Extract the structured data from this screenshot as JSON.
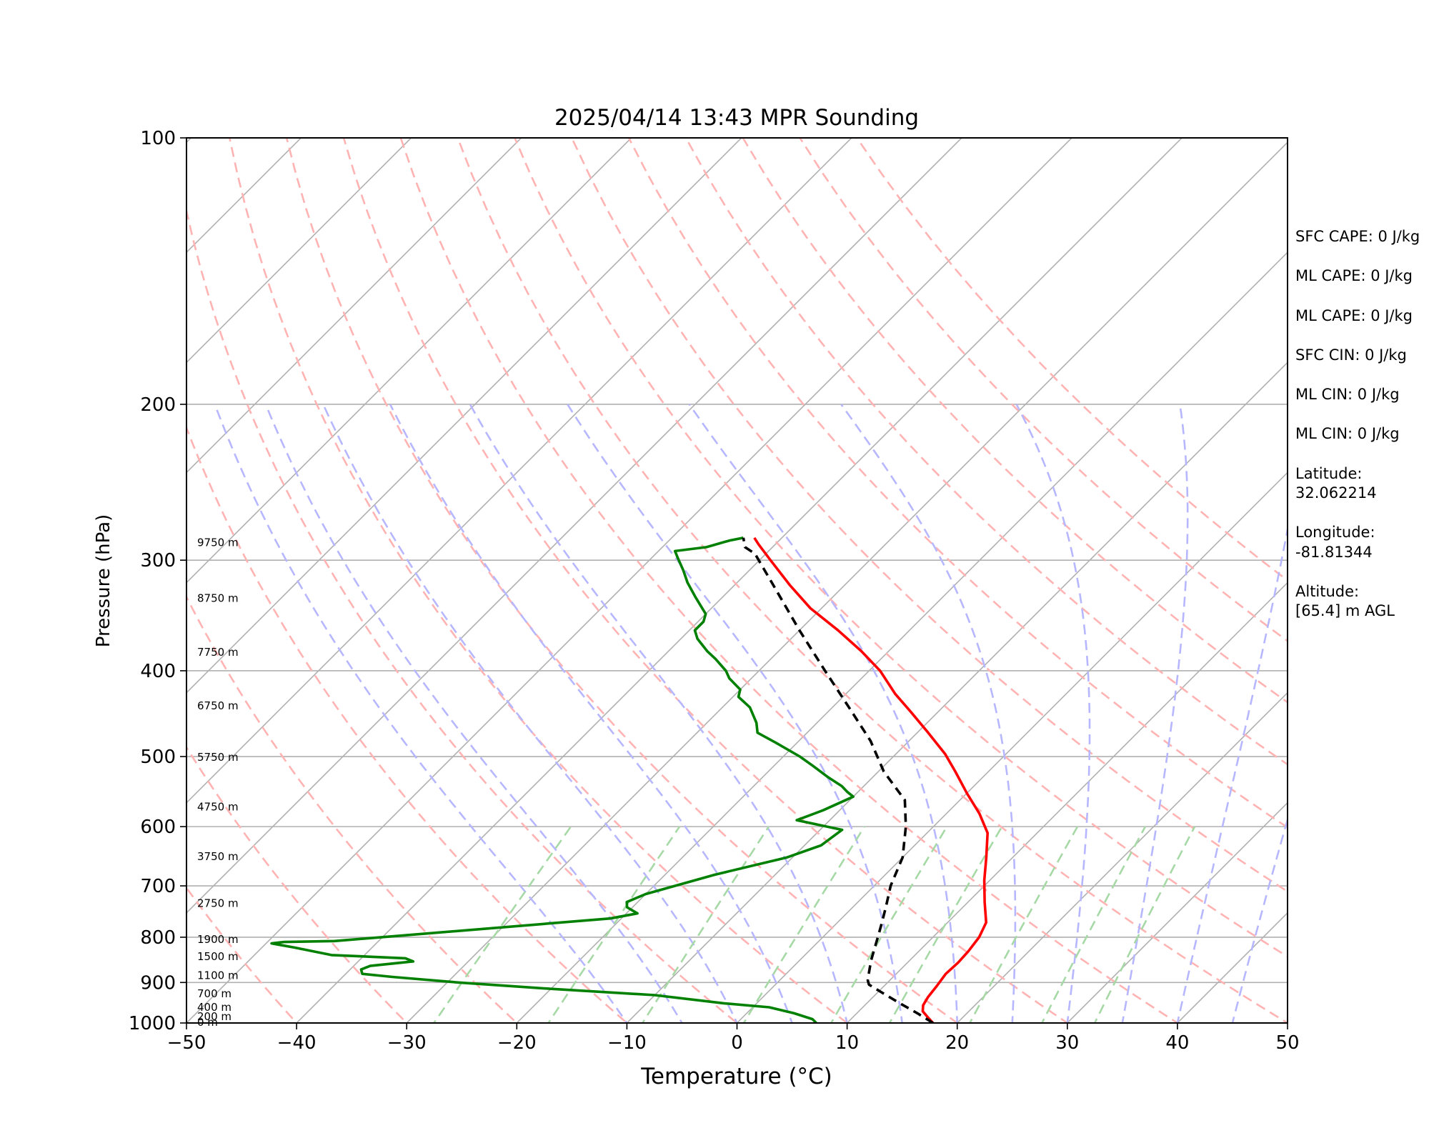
{
  "chart_data": {
    "type": "skew-t",
    "title": "2025/04/14 13:43 MPR Sounding",
    "xlabel": "Temperature (°C)",
    "ylabel": "Pressure (hPa)",
    "xlim": [
      -50,
      50
    ],
    "ylim": [
      1000,
      100
    ],
    "y_scale": "log",
    "x_ticks": [
      "−50",
      "−40",
      "−30",
      "−20",
      "−10",
      "0",
      "10",
      "20",
      "30",
      "40",
      "50"
    ],
    "y_ticks": [
      "100",
      "200",
      "300",
      "400",
      "500",
      "600",
      "700",
      "800",
      "900",
      "1000"
    ],
    "height_labels": [
      {
        "p": 1000,
        "label": "0 m"
      },
      {
        "p": 985,
        "label": "200 m"
      },
      {
        "p": 962,
        "label": "400 m"
      },
      {
        "p": 928,
        "label": "700 m"
      },
      {
        "p": 885,
        "label": "1100 m"
      },
      {
        "p": 843,
        "label": "1500 m"
      },
      {
        "p": 806,
        "label": "1900 m"
      },
      {
        "p": 734,
        "label": "2750 m"
      },
      {
        "p": 650,
        "label": "3750 m"
      },
      {
        "p": 571,
        "label": "4750 m"
      },
      {
        "p": 502,
        "label": "5750 m"
      },
      {
        "p": 439,
        "label": "6750 m"
      },
      {
        "p": 382,
        "label": "7750 m"
      },
      {
        "p": 332,
        "label": "8750 m"
      },
      {
        "p": 287,
        "label": "9750 m"
      }
    ],
    "series": [
      {
        "color": "#ff0000",
        "dash": "solid",
        "points": [
          [
            17.8,
            1000
          ],
          [
            16.8,
            985
          ],
          [
            15.8,
            970
          ],
          [
            15.3,
            955
          ],
          [
            15.0,
            935
          ],
          [
            14.8,
            910
          ],
          [
            14.5,
            880
          ],
          [
            14.6,
            855
          ],
          [
            14.5,
            830
          ],
          [
            14.2,
            800
          ],
          [
            13.5,
            770
          ],
          [
            11.5,
            730
          ],
          [
            9.5,
            690
          ],
          [
            7.6,
            650
          ],
          [
            5.5,
            610
          ],
          [
            3.0,
            580
          ],
          [
            0.0,
            550
          ],
          [
            -3.0,
            520
          ],
          [
            -5.5,
            497
          ],
          [
            -9.0,
            470
          ],
          [
            -12.5,
            445
          ],
          [
            -15.5,
            425
          ],
          [
            -19.0,
            400
          ],
          [
            -22.5,
            380
          ],
          [
            -26.5,
            360
          ],
          [
            -31.0,
            340
          ],
          [
            -35.0,
            320
          ],
          [
            -39.0,
            300
          ],
          [
            -41.5,
            288
          ],
          [
            -42.5,
            283
          ]
        ]
      },
      {
        "color": "#008000",
        "dash": "solid",
        "points": [
          [
            7.2,
            1000
          ],
          [
            6.5,
            990
          ],
          [
            4.3,
            975
          ],
          [
            1.5,
            960
          ],
          [
            -3.0,
            950
          ],
          [
            -10.0,
            930
          ],
          [
            -20.0,
            915
          ],
          [
            -29.0,
            900
          ],
          [
            -35.5,
            887
          ],
          [
            -38.5,
            880
          ],
          [
            -39.0,
            870
          ],
          [
            -38.5,
            862
          ],
          [
            -35.0,
            852
          ],
          [
            -36.0,
            845
          ],
          [
            -43.0,
            838
          ],
          [
            -47.0,
            822
          ],
          [
            -49.5,
            813
          ],
          [
            -48.5,
            810
          ],
          [
            -44.0,
            808
          ],
          [
            -21.0,
            762
          ],
          [
            -19.0,
            752
          ],
          [
            -20.5,
            740
          ],
          [
            -21.0,
            730
          ],
          [
            -20.0,
            715
          ],
          [
            -15.5,
            680
          ],
          [
            -10.5,
            650
          ],
          [
            -8.5,
            630
          ],
          [
            -8.0,
            605
          ],
          [
            -13.0,
            590
          ],
          [
            -11.5,
            575
          ],
          [
            -10.0,
            555
          ],
          [
            -11.0,
            548
          ],
          [
            -12.0,
            540
          ],
          [
            -14.0,
            528
          ],
          [
            -16.5,
            512
          ],
          [
            -18.5,
            500
          ],
          [
            -22.0,
            482
          ],
          [
            -24.5,
            470
          ],
          [
            -25.5,
            458
          ],
          [
            -27.5,
            440
          ],
          [
            -29.5,
            428
          ],
          [
            -30.0,
            420
          ],
          [
            -32.0,
            408
          ],
          [
            -33.0,
            400
          ],
          [
            -35.0,
            388
          ],
          [
            -36.5,
            380
          ],
          [
            -38.5,
            368
          ],
          [
            -39.5,
            360
          ],
          [
            -39.5,
            352
          ],
          [
            -40.0,
            345
          ],
          [
            -42.5,
            330
          ],
          [
            -44.5,
            318
          ],
          [
            -46.0,
            308
          ],
          [
            -47.5,
            299
          ],
          [
            -48.5,
            293
          ],
          [
            -46.0,
            290
          ],
          [
            -44.5,
            285
          ],
          [
            -43.5,
            283
          ]
        ]
      },
      {
        "color": "#000000",
        "dash": "dashed",
        "points": [
          [
            17.8,
            1000
          ],
          [
            15.5,
            975
          ],
          [
            13.0,
            950
          ],
          [
            10.5,
            925
          ],
          [
            8.5,
            905
          ],
          [
            8.0,
            895
          ],
          [
            7.5,
            880
          ],
          [
            6.5,
            850
          ],
          [
            5.0,
            800
          ],
          [
            4.2,
            775
          ],
          [
            3.0,
            740
          ],
          [
            1.5,
            700
          ],
          [
            0.0,
            650
          ],
          [
            -2.5,
            600
          ],
          [
            -5.0,
            560
          ],
          [
            -9.5,
            520
          ],
          [
            -13.5,
            480
          ],
          [
            -18.5,
            440
          ],
          [
            -24.0,
            400
          ],
          [
            -30.0,
            360
          ],
          [
            -36.5,
            320
          ],
          [
            -41.0,
            295
          ],
          [
            -42.5,
            290
          ],
          [
            -43.5,
            283
          ]
        ]
      }
    ],
    "background_lines": {
      "isotherms_C": [
        -140,
        -130,
        -120,
        -110,
        -100,
        -90,
        -80,
        -70,
        -60,
        -50,
        -40,
        -30,
        -20,
        -10,
        0,
        10,
        20,
        30,
        40,
        50
      ],
      "dry_adiabats_C": [
        -40,
        -30,
        -20,
        -10,
        0,
        10,
        20,
        30,
        40,
        50,
        60,
        70,
        80,
        90,
        100,
        110,
        120
      ],
      "moist_adiabats_C": [
        -10,
        -5,
        0,
        5,
        10,
        15,
        20,
        25,
        30,
        35,
        40,
        45
      ],
      "mixing_ratios_gkg": [
        0.4,
        1,
        2,
        4,
        7,
        10,
        16,
        24,
        32
      ]
    },
    "colors": {
      "isotherm": "#b0b0b0",
      "dry_adiabat": "#ffb3b3",
      "moist_adiabat": "#b7b7ff",
      "mixing_ratio": "#a6d9a6",
      "axes": "#000000"
    }
  },
  "stats": {
    "sfc_cape": "SFC CAPE: 0 J/kg",
    "ml_cape_1": "ML CAPE: 0 J/kg",
    "ml_cape_2": "ML CAPE: 0 J/kg",
    "sfc_cin": "SFC CIN: 0 J/kg",
    "ml_cin_1": "ML CIN: 0 J/kg",
    "ml_cin_2": "ML CIN: 0 J/kg",
    "latitude_label": "Latitude:",
    "latitude_value": "32.062214",
    "longitude_label": "Longitude:",
    "longitude_value": "-81.81344",
    "altitude_label": "Altitude:",
    "altitude_value": "[65.4] m AGL"
  }
}
